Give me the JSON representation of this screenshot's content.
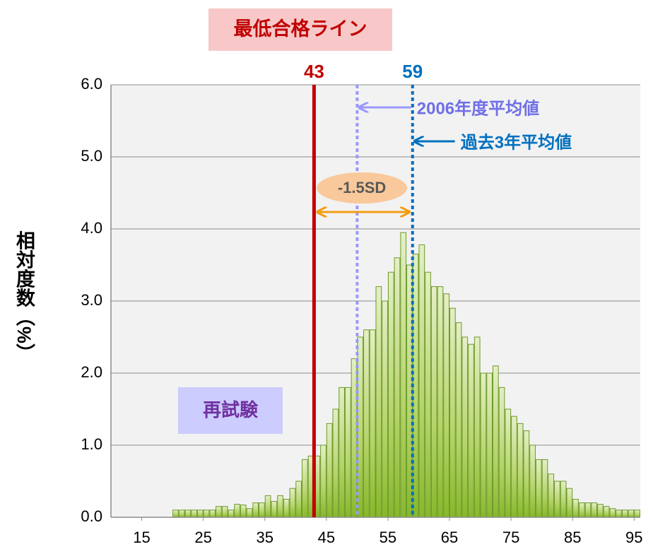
{
  "chart_data": {
    "type": "histogram",
    "title": "最低合格ライン",
    "y_label": "相対度数（%）",
    "bins": [
      20,
      21,
      22,
      23,
      24,
      25,
      26,
      27,
      28,
      29,
      30,
      31,
      32,
      33,
      34,
      35,
      36,
      37,
      38,
      39,
      40,
      41,
      42,
      43,
      44,
      45,
      46,
      47,
      48,
      49,
      50,
      51,
      52,
      53,
      54,
      55,
      56,
      57,
      58,
      59,
      60,
      61,
      62,
      63,
      64,
      65,
      66,
      67,
      68,
      69,
      70,
      71,
      72,
      73,
      74,
      75,
      76,
      77,
      78,
      79,
      80,
      81,
      82,
      83,
      84,
      85,
      86,
      87,
      88,
      89,
      90,
      91,
      92,
      93,
      94,
      95,
      96
    ],
    "values": [
      0.1,
      0.1,
      0.1,
      0.1,
      0.1,
      0.1,
      0.1,
      0.15,
      0.15,
      0.1,
      0.18,
      0.17,
      0.12,
      0.2,
      0.2,
      0.3,
      0.22,
      0.3,
      0.25,
      0.4,
      0.5,
      0.8,
      0.85,
      0.85,
      1.0,
      1.3,
      1.5,
      1.8,
      1.8,
      2.2,
      2.5,
      2.6,
      2.6,
      3.2,
      3.0,
      3.4,
      3.6,
      3.95,
      3.5,
      3.65,
      3.78,
      3.4,
      3.2,
      3.2,
      3.1,
      2.9,
      2.7,
      2.5,
      2.4,
      2.5,
      2.0,
      2.0,
      2.1,
      1.8,
      1.5,
      1.4,
      1.3,
      1.2,
      1.0,
      0.8,
      0.8,
      0.6,
      0.5,
      0.5,
      0.4,
      0.25,
      0.2,
      0.2,
      0.2,
      0.18,
      0.15,
      0.12,
      0.1,
      0.1,
      0.1,
      0.1
    ],
    "color": "#9bbb59",
    "xlim": [
      10,
      96
    ],
    "xticks": [
      15,
      25,
      35,
      45,
      55,
      65,
      75,
      85,
      95
    ],
    "ylim": [
      0,
      6
    ],
    "yticks": [
      {
        "value": 0,
        "label": "0.0"
      },
      {
        "value": 1,
        "label": "1.0"
      },
      {
        "value": 2,
        "label": "2.0"
      },
      {
        "value": 3,
        "label": "3.0"
      },
      {
        "value": 4,
        "label": "4.0"
      },
      {
        "value": 5,
        "label": "5.0"
      },
      {
        "value": 6,
        "label": "6.0"
      }
    ],
    "grid": true,
    "vlines": [
      {
        "x": 43,
        "color": "#c00000",
        "dashed": false,
        "show_x": true
      },
      {
        "x": 59,
        "color": "#0070c0",
        "dashed": true,
        "show_x": true,
        "note": "過去3年平均値"
      },
      {
        "x": 50,
        "color": "#9999ff",
        "dashed": true,
        "note": "2006年度平均値"
      }
    ],
    "sd_label": "-1.5SD",
    "region_label": "再試験"
  }
}
